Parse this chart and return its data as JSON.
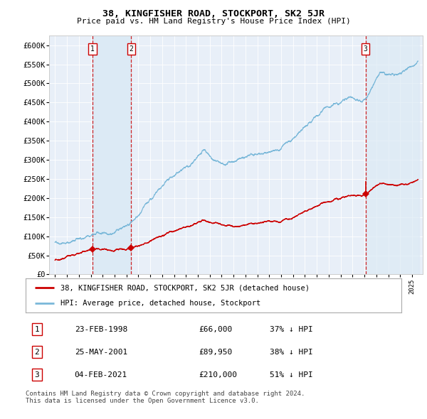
{
  "title": "38, KINGFISHER ROAD, STOCKPORT, SK2 5JR",
  "subtitle": "Price paid vs. HM Land Registry's House Price Index (HPI)",
  "ylim": [
    0,
    625000
  ],
  "yticks": [
    0,
    50000,
    100000,
    150000,
    200000,
    250000,
    300000,
    350000,
    400000,
    450000,
    500000,
    550000,
    600000
  ],
  "hpi_color": "#7ab8d9",
  "price_color": "#cc0000",
  "vline_color": "#cc0000",
  "shade_color": "#dceaf5",
  "plot_bg": "#e8eff8",
  "sale_points": [
    {
      "date_num": 1998.14,
      "price": 66000,
      "label": "1",
      "hpi_val": 104762
    },
    {
      "date_num": 2001.4,
      "price": 89950,
      "label": "2",
      "hpi_val": 145000
    },
    {
      "date_num": 2021.09,
      "price": 210000,
      "label": "3",
      "hpi_val": 428000
    }
  ],
  "legend_entries": [
    {
      "label": "38, KINGFISHER ROAD, STOCKPORT, SK2 5JR (detached house)",
      "color": "#cc0000"
    },
    {
      "label": "HPI: Average price, detached house, Stockport",
      "color": "#7ab8d9"
    }
  ],
  "table_rows": [
    {
      "num": "1",
      "date": "23-FEB-1998",
      "price": "£66,000",
      "pct": "37% ↓ HPI"
    },
    {
      "num": "2",
      "date": "25-MAY-2001",
      "price": "£89,950",
      "pct": "38% ↓ HPI"
    },
    {
      "num": "3",
      "date": "04-FEB-2021",
      "price": "£210,000",
      "pct": "51% ↓ HPI"
    }
  ],
  "footer": "Contains HM Land Registry data © Crown copyright and database right 2024.\nThis data is licensed under the Open Government Licence v3.0."
}
